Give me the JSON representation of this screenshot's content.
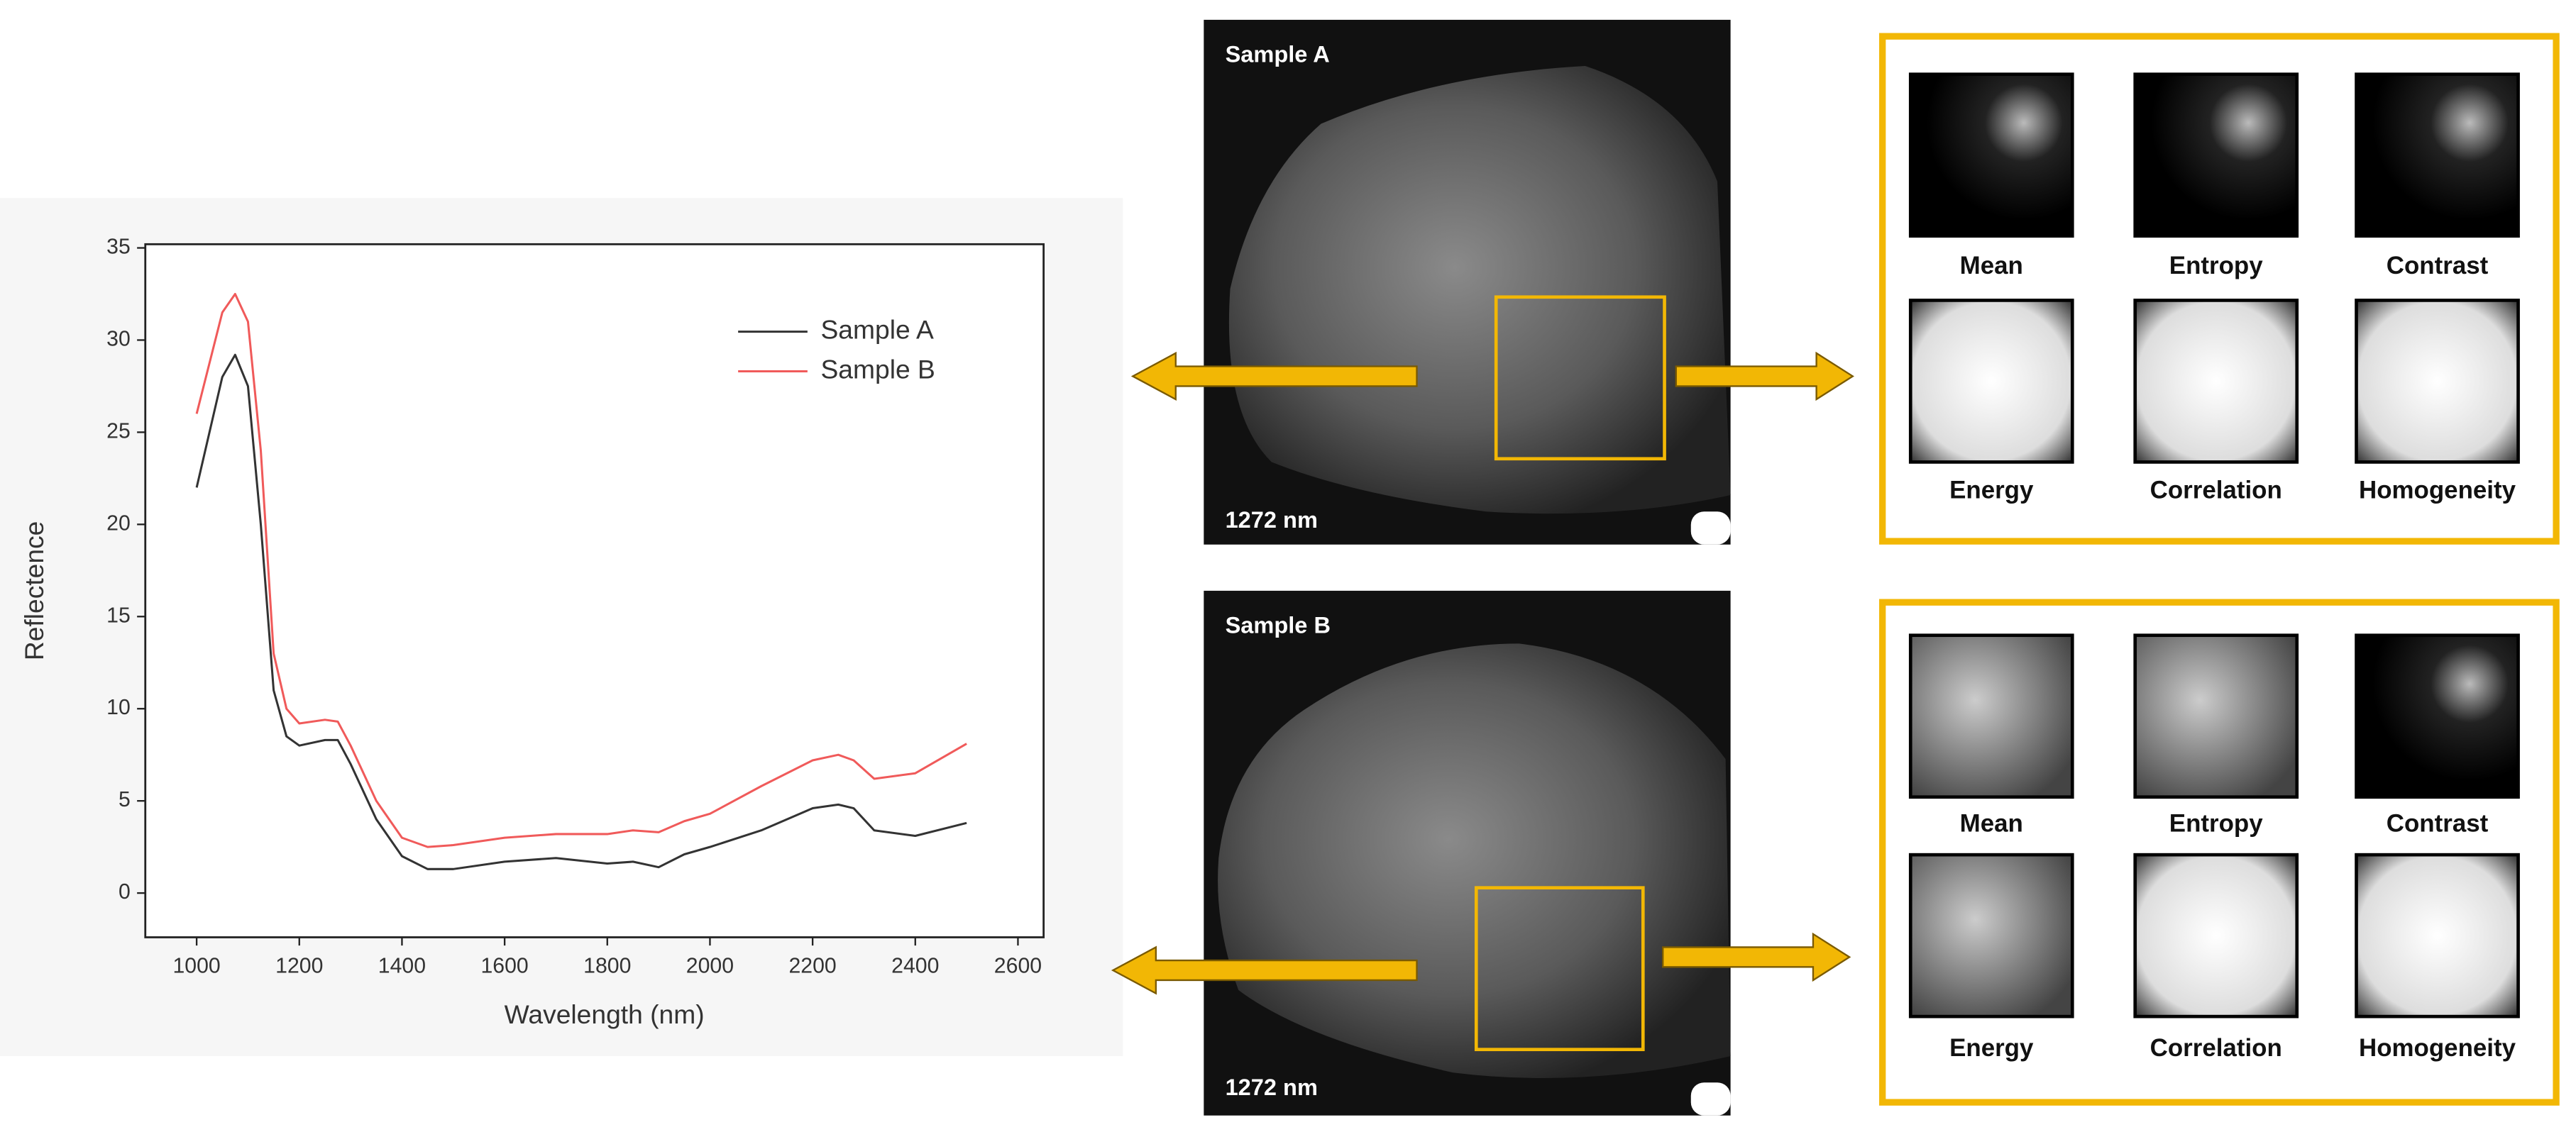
{
  "chart_data": {
    "type": "line",
    "xlabel": "Wavelength (nm)",
    "ylabel": "Reflectence",
    "x": [
      1000,
      1050,
      1075,
      1100,
      1125,
      1150,
      1175,
      1200,
      1250,
      1275,
      1300,
      1350,
      1400,
      1450,
      1500,
      1600,
      1700,
      1800,
      1850,
      1900,
      1950,
      2000,
      2100,
      2200,
      2250,
      2280,
      2320,
      2400,
      2500
    ],
    "series": [
      {
        "name": "Sample A",
        "color": "#333333",
        "values": [
          22,
          28,
          29.2,
          27.5,
          20,
          11,
          8.5,
          8,
          8.3,
          8.3,
          7,
          4,
          2,
          1.3,
          1.3,
          1.7,
          1.9,
          1.6,
          1.7,
          1.4,
          2.1,
          2.5,
          3.4,
          4.6,
          4.8,
          4.6,
          3.4,
          3.1,
          3.8
        ]
      },
      {
        "name": "Sample B",
        "color": "#f05a5a",
        "values": [
          26,
          31.5,
          32.5,
          31,
          24,
          13,
          10,
          9.2,
          9.4,
          9.3,
          8,
          5,
          3,
          2.5,
          2.6,
          3,
          3.2,
          3.2,
          3.4,
          3.3,
          3.9,
          4.3,
          5.8,
          7.2,
          7.5,
          7.2,
          6.2,
          6.5,
          8.1
        ]
      }
    ],
    "xlim": [
      900,
      2650
    ],
    "ylim": [
      -2.4,
      35.2
    ],
    "xticks": [
      1000,
      1200,
      1400,
      1600,
      1800,
      2000,
      2200,
      2400,
      2600
    ],
    "yticks": [
      0,
      5,
      10,
      15,
      20,
      25,
      30,
      35
    ],
    "legend": "upper right",
    "grid": false
  },
  "panels": [
    {
      "label": "Sample A",
      "wavelength": "1272 nm",
      "features": [
        "Mean",
        "Entropy",
        "Contrast",
        "Energy",
        "Correlation",
        "Homogeneity"
      ]
    },
    {
      "label": "Sample B",
      "wavelength": "1272 nm",
      "features": [
        "Mean",
        "Entropy",
        "Contrast",
        "Energy",
        "Correlation",
        "Homogeneity"
      ]
    }
  ]
}
